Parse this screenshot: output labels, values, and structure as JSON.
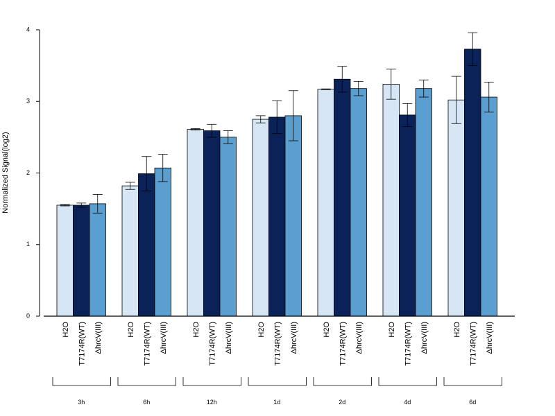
{
  "chart_data": {
    "type": "bar",
    "title": "",
    "xlabel": "",
    "ylabel": "Normalized Signal(log2)",
    "ylim": [
      0,
      4
    ],
    "yticks": [
      "0",
      "1",
      "2",
      "3",
      "4"
    ],
    "groups": [
      "3h",
      "6h",
      "12h",
      "1d",
      "2d",
      "4d",
      "6d"
    ],
    "conditions": [
      "H2O",
      "T7174R(WT)",
      "ΔhrcV(III)"
    ],
    "colors": [
      "#d6e6f5",
      "#0a2257",
      "#5a9fcf"
    ],
    "grid": false,
    "legend": "none",
    "series": [
      {
        "values": [
          1.55,
          1.82,
          2.61,
          2.75,
          3.17,
          3.24,
          3.02
        ],
        "err": [
          0.01,
          0.05,
          0.01,
          0.05,
          0.005,
          0.21,
          0.33
        ]
      },
      {
        "values": [
          1.55,
          1.99,
          2.59,
          2.78,
          3.31,
          2.81,
          3.73
        ],
        "err": [
          0.03,
          0.24,
          0.09,
          0.23,
          0.18,
          0.16,
          0.23
        ]
      },
      {
        "values": [
          1.57,
          2.07,
          2.5,
          2.8,
          3.18,
          3.18,
          3.06
        ],
        "err": [
          0.13,
          0.19,
          0.09,
          0.35,
          0.1,
          0.12,
          0.21
        ]
      }
    ]
  }
}
